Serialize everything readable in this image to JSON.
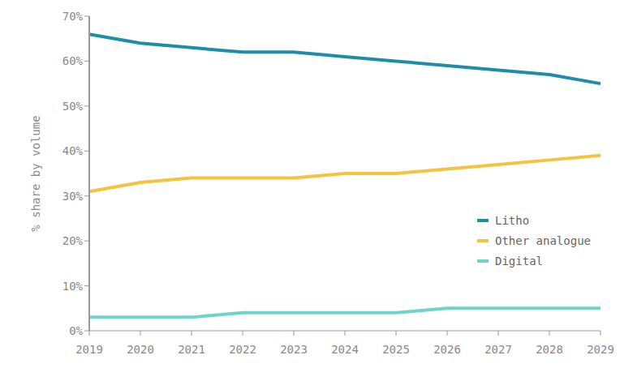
{
  "chart_data": {
    "type": "line",
    "y_label": "% share by volume",
    "categories": [
      "2019",
      "2020",
      "2021",
      "2022",
      "2023",
      "2024",
      "2025",
      "2026",
      "2027",
      "2028",
      "2029"
    ],
    "series": [
      {
        "name": "Litho",
        "color": "#1d8ea5",
        "values": [
          66,
          64,
          63,
          62,
          62,
          61,
          60,
          59,
          58,
          57,
          55
        ]
      },
      {
        "name": "Other analogue",
        "color": "#f3c53d",
        "values": [
          31,
          33,
          34,
          34,
          34,
          35,
          35,
          36,
          37,
          38,
          39
        ]
      },
      {
        "name": "Digital",
        "color": "#6dd5c8",
        "values": [
          3,
          3,
          3,
          4,
          4,
          4,
          4,
          5,
          5,
          5,
          5
        ]
      }
    ],
    "ylim": [
      0,
      70
    ],
    "yticks": [
      {
        "value": 0,
        "label": "0%"
      },
      {
        "value": 10,
        "label": "10%"
      },
      {
        "value": 20,
        "label": "20%"
      },
      {
        "value": 30,
        "label": "30%"
      },
      {
        "value": 40,
        "label": "40%"
      },
      {
        "value": 50,
        "label": "50%"
      },
      {
        "value": 60,
        "label": "60%"
      },
      {
        "value": 70,
        "label": "70%"
      }
    ],
    "grid": false,
    "legend": "right"
  }
}
